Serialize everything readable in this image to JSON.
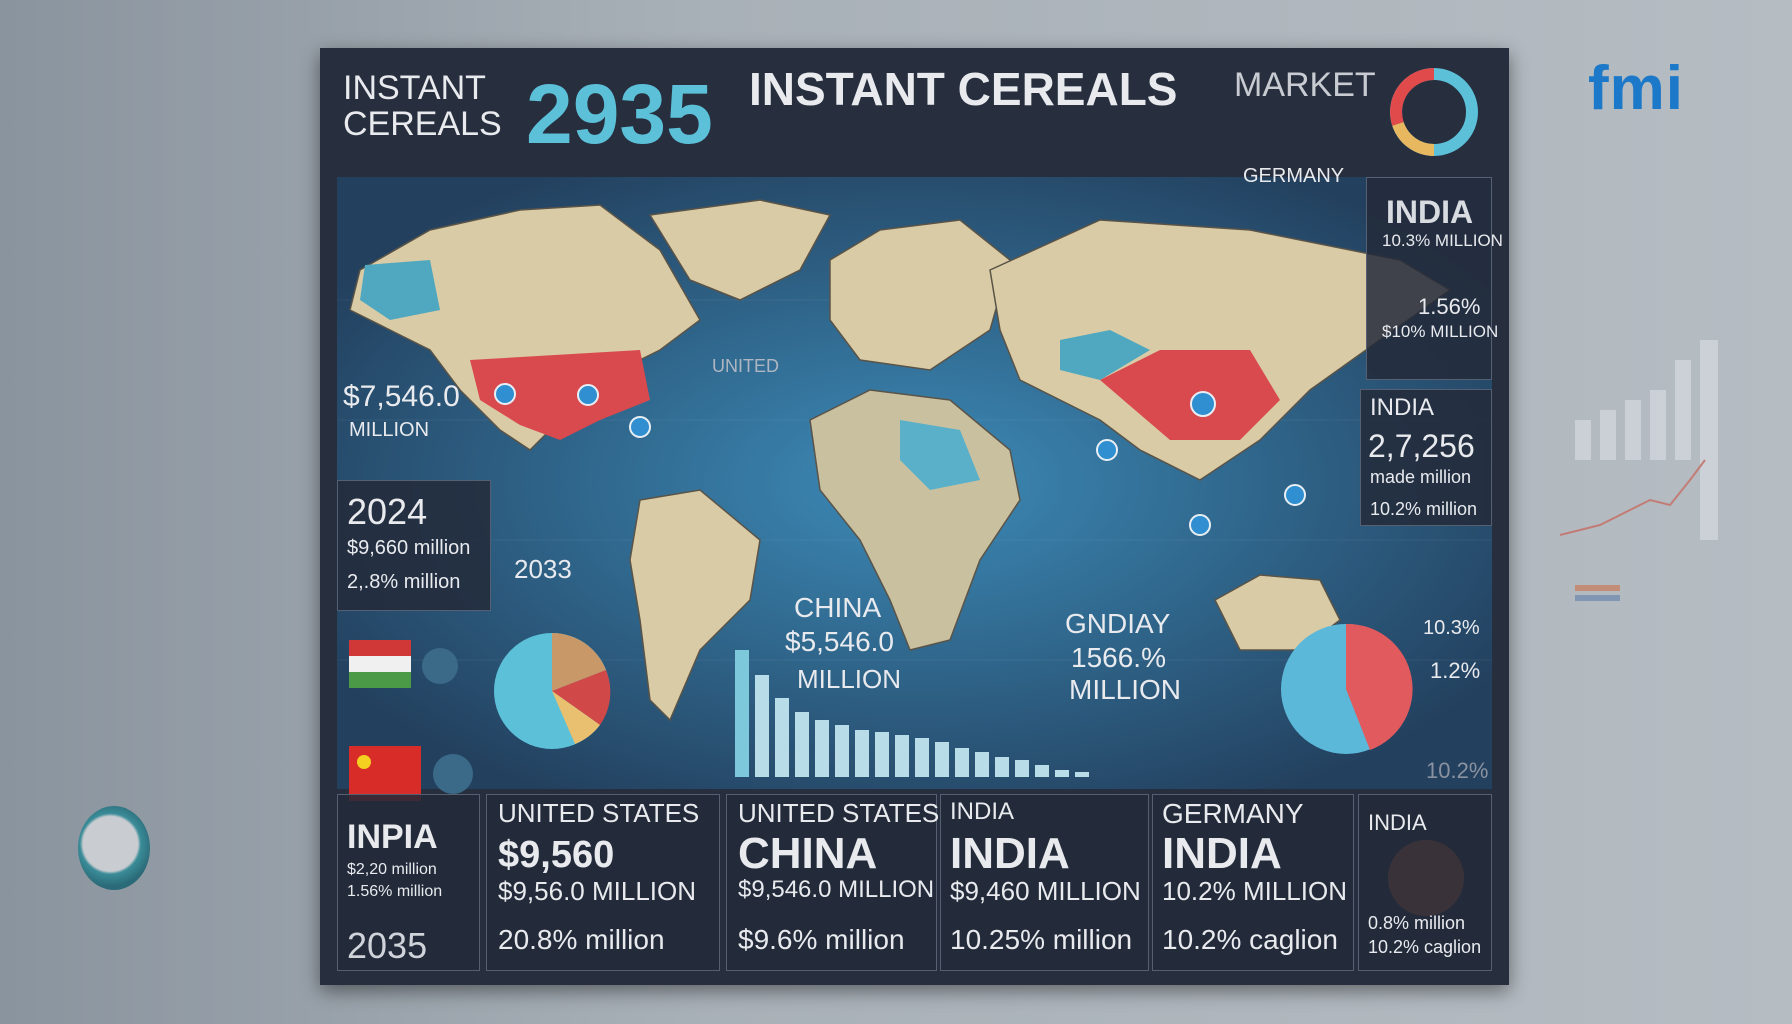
{
  "header": {
    "left_title": "INSTANT CEREALS",
    "year": "2935",
    "title": "INSTANT CEREALS",
    "title_suffix": "MARKET",
    "logo": "fmi"
  },
  "map_labels": {
    "germany": "GERMANY",
    "united": "UNITED",
    "china": {
      "name": "CHINA",
      "value": "$5,546.0",
      "unit": "MILLION"
    },
    "gndiay": {
      "name": "GNDIAY",
      "value": "1566.%",
      "unit": "MILLION"
    }
  },
  "left": {
    "value": "$7,546.0",
    "unit": "MILLION",
    "card": {
      "year": "2024",
      "line1": "$9,660 million",
      "line2": "2,.8% million"
    },
    "year2": "2033"
  },
  "right": {
    "card1": {
      "name": "INDIA",
      "line1": "10.3% MILLION",
      "line2": "1.56%",
      "line3": "$10% MILLION"
    },
    "card2": {
      "name": "INDIA",
      "value": "2,7,256",
      "line1": "made million",
      "line2": "10.2% million"
    },
    "pcts": [
      "10.3%",
      "1.2%",
      "10.2%"
    ]
  },
  "bottom": [
    {
      "lines": [
        "INPIA",
        "$2,20 million",
        "1.56% million",
        "2035"
      ]
    },
    {
      "lines": [
        "UNITED STATES",
        "$9,560",
        "$9,56.0 MILLION",
        "20.8% million"
      ]
    },
    {
      "lines": [
        "UNITED STATES",
        "CHINA",
        "$9,546.0 MILLION",
        "$9.6% million"
      ]
    },
    {
      "lines": [
        "INDIA",
        "INDIA",
        "$9,460 MILLION",
        "10.25% million"
      ]
    },
    {
      "lines": [
        "GERMANY",
        "INDIA",
        "10.2% MILLION",
        "10.2% caglion"
      ]
    },
    {
      "lines": [
        "INDIA",
        "0.8% million",
        "10.2% caglion"
      ]
    }
  ]
}
